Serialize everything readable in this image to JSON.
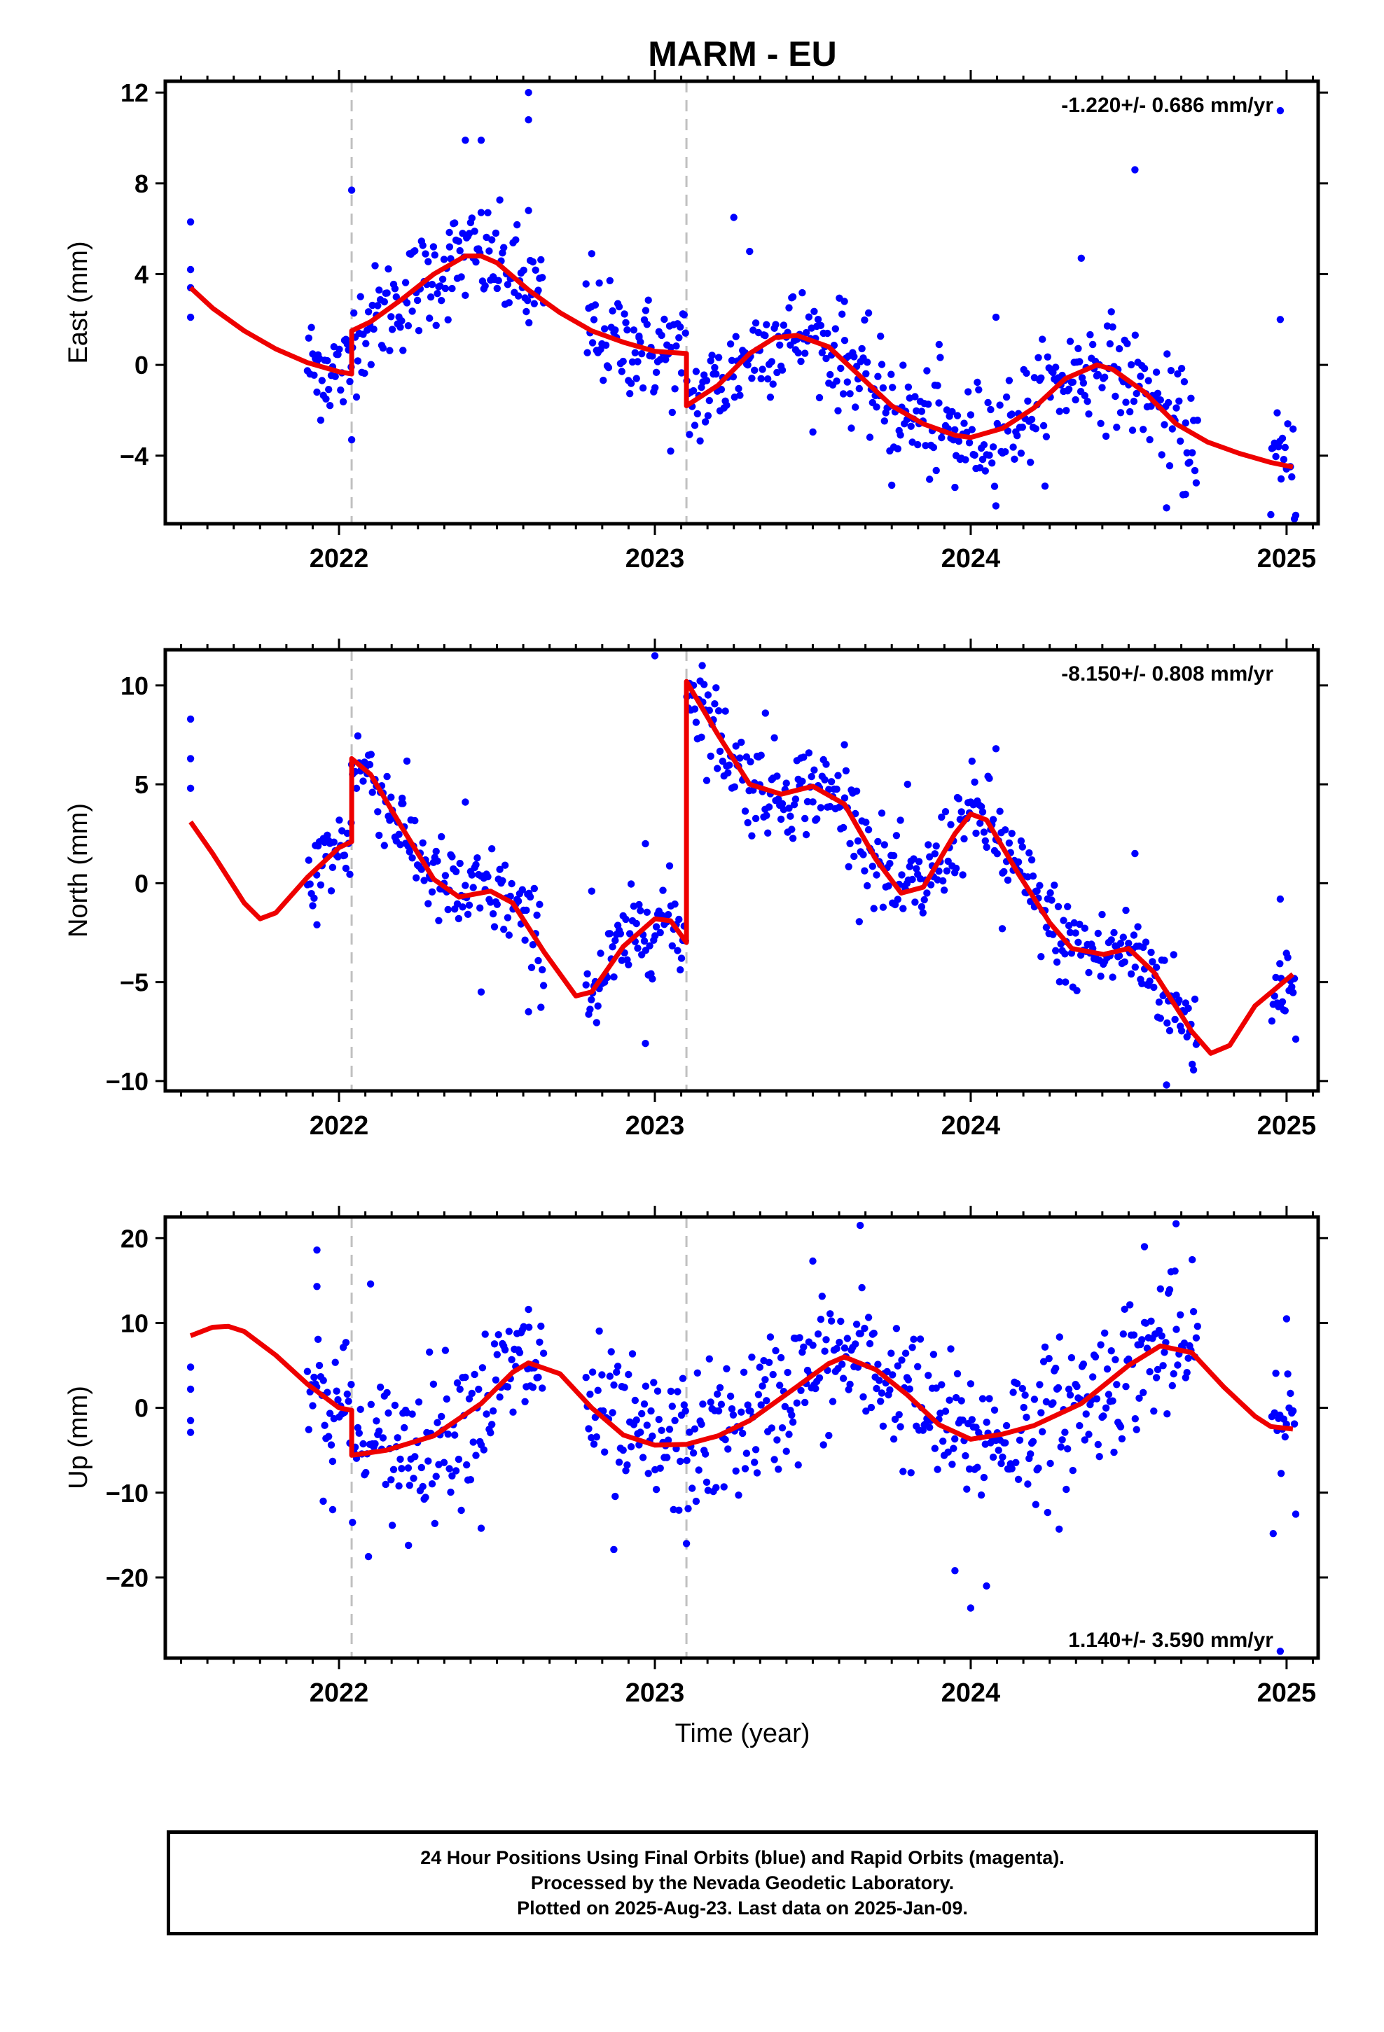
{
  "title": "MARM - EU",
  "xlabel": "Time (year)",
  "colors": {
    "points": "#0000ff",
    "model": "#ee0000",
    "steps": "#c0c0c0",
    "frame": "#000000"
  },
  "caption": {
    "line1": "24 Hour Positions Using Final Orbits (blue) and Rapid Orbits (magenta).",
    "line2": "Processed by the Nevada Geodetic Laboratory.",
    "line3": "Plotted on 2025-Aug-23. Last data on 2025-Jan-09."
  },
  "chart_data": [
    {
      "type": "scatter",
      "component": "east",
      "ylabel": "East (mm)",
      "rate_label": "-1.220+/- 0.686 mm/yr",
      "rate_position": "top-right",
      "xlim": [
        2021.45,
        2025.1
      ],
      "ylim": [
        -7,
        12.5
      ],
      "xticks": [
        2022,
        2023,
        2024,
        2025
      ],
      "xtick_labels": [
        "2022",
        "2023",
        "2024",
        "2025"
      ],
      "yticks": [
        -4,
        0,
        4,
        8,
        12
      ],
      "ytick_labels": [
        "−4",
        "0",
        "4",
        "8",
        "12"
      ],
      "step_lines_x": [
        2022.04,
        2023.1
      ],
      "observation_gaps": [
        [
          2021.55,
          2021.9
        ],
        [
          2022.65,
          2022.78
        ],
        [
          2024.72,
          2024.95
        ]
      ],
      "points_sample": [
        {
          "x": 2021.53,
          "y": 3.4
        },
        {
          "x": 2021.53,
          "y": 4.2
        },
        {
          "x": 2021.53,
          "y": 6.3
        },
        {
          "x": 2021.53,
          "y": 2.1
        },
        {
          "x": 2021.93,
          "y": -1.2
        },
        {
          "x": 2022.04,
          "y": 7.7
        },
        {
          "x": 2022.04,
          "y": -3.3
        },
        {
          "x": 2022.35,
          "y": 5.2
        },
        {
          "x": 2022.4,
          "y": 9.9
        },
        {
          "x": 2022.45,
          "y": 9.9
        },
        {
          "x": 2022.6,
          "y": 12.0
        },
        {
          "x": 2022.6,
          "y": 10.8
        },
        {
          "x": 2022.6,
          "y": 6.8
        },
        {
          "x": 2022.8,
          "y": 4.9
        },
        {
          "x": 2022.95,
          "y": 1.2
        },
        {
          "x": 2023.05,
          "y": -3.8
        },
        {
          "x": 2023.25,
          "y": 6.5
        },
        {
          "x": 2023.3,
          "y": 5.0
        },
        {
          "x": 2023.6,
          "y": 2.8
        },
        {
          "x": 2023.75,
          "y": -5.3
        },
        {
          "x": 2023.9,
          "y": 0.9
        },
        {
          "x": 2023.95,
          "y": -5.4
        },
        {
          "x": 2024.08,
          "y": 2.1
        },
        {
          "x": 2024.35,
          "y": 4.7
        },
        {
          "x": 2024.52,
          "y": 8.6
        },
        {
          "x": 2024.62,
          "y": -6.3
        },
        {
          "x": 2024.68,
          "y": -5.7
        },
        {
          "x": 2024.95,
          "y": -6.6
        },
        {
          "x": 2024.98,
          "y": 2.0
        },
        {
          "x": 2024.98,
          "y": 11.2
        }
      ],
      "model": [
        [
          2021.53,
          3.4
        ],
        [
          2021.6,
          2.5
        ],
        [
          2021.7,
          1.5
        ],
        [
          2021.8,
          0.7
        ],
        [
          2021.9,
          0.1
        ],
        [
          2022.0,
          -0.3
        ],
        [
          2022.04,
          -0.4
        ],
        [
          2022.04,
          1.5
        ],
        [
          2022.1,
          1.9
        ],
        [
          2022.2,
          2.9
        ],
        [
          2022.3,
          4.0
        ],
        [
          2022.4,
          4.8
        ],
        [
          2022.45,
          4.8
        ],
        [
          2022.5,
          4.5
        ],
        [
          2022.6,
          3.3
        ],
        [
          2022.7,
          2.3
        ],
        [
          2022.8,
          1.5
        ],
        [
          2022.9,
          1.0
        ],
        [
          2023.0,
          0.6
        ],
        [
          2023.1,
          0.5
        ],
        [
          2023.1,
          -1.8
        ],
        [
          2023.2,
          -0.9
        ],
        [
          2023.3,
          0.5
        ],
        [
          2023.38,
          1.2
        ],
        [
          2023.45,
          1.3
        ],
        [
          2023.55,
          0.8
        ],
        [
          2023.65,
          -0.5
        ],
        [
          2023.75,
          -1.8
        ],
        [
          2023.85,
          -2.6
        ],
        [
          2023.95,
          -3.1
        ],
        [
          2024.0,
          -3.2
        ],
        [
          2024.1,
          -2.8
        ],
        [
          2024.2,
          -1.9
        ],
        [
          2024.3,
          -0.6
        ],
        [
          2024.4,
          0.0
        ],
        [
          2024.45,
          -0.2
        ],
        [
          2024.55,
          -1.2
        ],
        [
          2024.65,
          -2.6
        ],
        [
          2024.75,
          -3.4
        ],
        [
          2024.85,
          -3.9
        ],
        [
          2024.95,
          -4.3
        ],
        [
          2025.02,
          -4.5
        ]
      ]
    },
    {
      "type": "scatter",
      "component": "north",
      "ylabel": "North (mm)",
      "rate_label": "-8.150+/- 0.808 mm/yr",
      "rate_position": "top-right",
      "xlim": [
        2021.45,
        2025.1
      ],
      "ylim": [
        -10.5,
        11.8
      ],
      "xticks": [
        2022,
        2023,
        2024,
        2025
      ],
      "xtick_labels": [
        "2022",
        "2023",
        "2024",
        "2025"
      ],
      "yticks": [
        -10,
        -5,
        0,
        5,
        10
      ],
      "ytick_labels": [
        "−10",
        "−5",
        "0",
        "5",
        "10"
      ],
      "step_lines_x": [
        2022.04,
        2023.1
      ],
      "observation_gaps": [
        [
          2021.55,
          2021.9
        ],
        [
          2022.65,
          2022.78
        ],
        [
          2024.72,
          2024.95
        ]
      ],
      "points_sample": [
        {
          "x": 2021.53,
          "y": 8.3
        },
        {
          "x": 2021.53,
          "y": 6.3
        },
        {
          "x": 2021.53,
          "y": 4.8
        },
        {
          "x": 2021.93,
          "y": -2.1
        },
        {
          "x": 2022.04,
          "y": 6.0
        },
        {
          "x": 2022.2,
          "y": 4.3
        },
        {
          "x": 2022.4,
          "y": 4.1
        },
        {
          "x": 2022.45,
          "y": -5.5
        },
        {
          "x": 2022.6,
          "y": -6.5
        },
        {
          "x": 2022.8,
          "y": -0.4
        },
        {
          "x": 2022.97,
          "y": 2.0
        },
        {
          "x": 2022.97,
          "y": -8.1
        },
        {
          "x": 2023.0,
          "y": 11.5
        },
        {
          "x": 2023.15,
          "y": 11.0
        },
        {
          "x": 2023.35,
          "y": 8.6
        },
        {
          "x": 2023.6,
          "y": 7.0
        },
        {
          "x": 2023.8,
          "y": 5.0
        },
        {
          "x": 2024.08,
          "y": 6.8
        },
        {
          "x": 2024.1,
          "y": -2.3
        },
        {
          "x": 2024.3,
          "y": -5.0
        },
        {
          "x": 2024.52,
          "y": 1.5
        },
        {
          "x": 2024.62,
          "y": -10.2
        },
        {
          "x": 2024.98,
          "y": -0.8
        },
        {
          "x": 2024.98,
          "y": -6.2
        }
      ],
      "model": [
        [
          2021.53,
          3.1
        ],
        [
          2021.6,
          1.5
        ],
        [
          2021.7,
          -1.0
        ],
        [
          2021.75,
          -1.8
        ],
        [
          2021.8,
          -1.5
        ],
        [
          2021.9,
          0.3
        ],
        [
          2022.0,
          1.8
        ],
        [
          2022.04,
          2.1
        ],
        [
          2022.04,
          6.3
        ],
        [
          2022.1,
          5.5
        ],
        [
          2022.2,
          2.8
        ],
        [
          2022.3,
          0.2
        ],
        [
          2022.38,
          -0.7
        ],
        [
          2022.48,
          -0.4
        ],
        [
          2022.55,
          -1.0
        ],
        [
          2022.65,
          -3.5
        ],
        [
          2022.75,
          -5.7
        ],
        [
          2022.8,
          -5.5
        ],
        [
          2022.9,
          -3.2
        ],
        [
          2023.0,
          -1.8
        ],
        [
          2023.05,
          -1.9
        ],
        [
          2023.1,
          -3.0
        ],
        [
          2023.1,
          10.2
        ],
        [
          2023.2,
          7.5
        ],
        [
          2023.3,
          5.0
        ],
        [
          2023.4,
          4.5
        ],
        [
          2023.5,
          4.9
        ],
        [
          2023.6,
          4.0
        ],
        [
          2023.7,
          1.2
        ],
        [
          2023.78,
          -0.5
        ],
        [
          2023.85,
          -0.2
        ],
        [
          2023.95,
          2.5
        ],
        [
          2024.0,
          3.5
        ],
        [
          2024.05,
          3.2
        ],
        [
          2024.15,
          0.5
        ],
        [
          2024.25,
          -2.0
        ],
        [
          2024.32,
          -3.3
        ],
        [
          2024.42,
          -3.6
        ],
        [
          2024.5,
          -3.3
        ],
        [
          2024.58,
          -4.5
        ],
        [
          2024.7,
          -7.5
        ],
        [
          2024.76,
          -8.6
        ],
        [
          2024.82,
          -8.2
        ],
        [
          2024.9,
          -6.2
        ],
        [
          2025.02,
          -4.6
        ]
      ]
    },
    {
      "type": "scatter",
      "component": "up",
      "ylabel": "Up (mm)",
      "rate_label": "1.140+/- 3.590 mm/yr",
      "rate_position": "bottom-right",
      "xlim": [
        2021.45,
        2025.1
      ],
      "ylim": [
        -29.5,
        22.5
      ],
      "xticks": [
        2022,
        2023,
        2024,
        2025
      ],
      "xtick_labels": [
        "2022",
        "2023",
        "2024",
        "2025"
      ],
      "yticks": [
        -20,
        -10,
        0,
        10,
        20
      ],
      "ytick_labels": [
        "−20",
        "−10",
        "0",
        "10",
        "20"
      ],
      "step_lines_x": [
        2022.04,
        2023.1
      ],
      "observation_gaps": [
        [
          2021.55,
          2021.9
        ],
        [
          2022.65,
          2022.78
        ],
        [
          2024.72,
          2024.95
        ]
      ],
      "points_sample": [
        {
          "x": 2021.53,
          "y": 4.8
        },
        {
          "x": 2021.53,
          "y": 2.2
        },
        {
          "x": 2021.53,
          "y": -1.5
        },
        {
          "x": 2021.53,
          "y": -2.9
        },
        {
          "x": 2021.93,
          "y": 18.6
        },
        {
          "x": 2021.93,
          "y": 14.3
        },
        {
          "x": 2021.95,
          "y": -11.0
        },
        {
          "x": 2021.98,
          "y": -12.0
        },
        {
          "x": 2022.1,
          "y": 14.6
        },
        {
          "x": 2022.22,
          "y": -16.2
        },
        {
          "x": 2022.45,
          "y": -14.2
        },
        {
          "x": 2022.6,
          "y": 11.6
        },
        {
          "x": 2022.87,
          "y": -16.7
        },
        {
          "x": 2023.1,
          "y": -16.0
        },
        {
          "x": 2023.5,
          "y": 17.3
        },
        {
          "x": 2023.65,
          "y": 21.5
        },
        {
          "x": 2023.95,
          "y": -19.2
        },
        {
          "x": 2024.0,
          "y": -23.6
        },
        {
          "x": 2024.05,
          "y": -21.0
        },
        {
          "x": 2024.28,
          "y": -14.3
        },
        {
          "x": 2024.55,
          "y": 19.0
        },
        {
          "x": 2024.65,
          "y": 21.7
        },
        {
          "x": 2024.98,
          "y": -28.7
        },
        {
          "x": 2025.0,
          "y": 10.5
        }
      ],
      "model": [
        [
          2021.53,
          8.5
        ],
        [
          2021.6,
          9.5
        ],
        [
          2021.65,
          9.6
        ],
        [
          2021.7,
          9.0
        ],
        [
          2021.8,
          6.2
        ],
        [
          2021.9,
          2.8
        ],
        [
          2022.0,
          0.0
        ],
        [
          2022.04,
          -0.3
        ],
        [
          2022.04,
          -5.6
        ],
        [
          2022.15,
          -5.0
        ],
        [
          2022.3,
          -3.3
        ],
        [
          2022.45,
          0.5
        ],
        [
          2022.55,
          4.2
        ],
        [
          2022.6,
          5.3
        ],
        [
          2022.7,
          4.0
        ],
        [
          2022.8,
          0.0
        ],
        [
          2022.9,
          -3.2
        ],
        [
          2023.0,
          -4.4
        ],
        [
          2023.1,
          -4.3
        ],
        [
          2023.2,
          -3.3
        ],
        [
          2023.3,
          -1.5
        ],
        [
          2023.45,
          2.5
        ],
        [
          2023.55,
          5.2
        ],
        [
          2023.6,
          6.0
        ],
        [
          2023.7,
          4.5
        ],
        [
          2023.8,
          1.5
        ],
        [
          2023.9,
          -2.0
        ],
        [
          2024.0,
          -3.7
        ],
        [
          2024.1,
          -3.1
        ],
        [
          2024.2,
          -2.1
        ],
        [
          2024.35,
          0.5
        ],
        [
          2024.5,
          5.0
        ],
        [
          2024.6,
          7.3
        ],
        [
          2024.7,
          6.5
        ],
        [
          2024.8,
          2.5
        ],
        [
          2024.9,
          -1.0
        ],
        [
          2024.95,
          -2.2
        ],
        [
          2025.02,
          -2.5
        ]
      ]
    }
  ]
}
